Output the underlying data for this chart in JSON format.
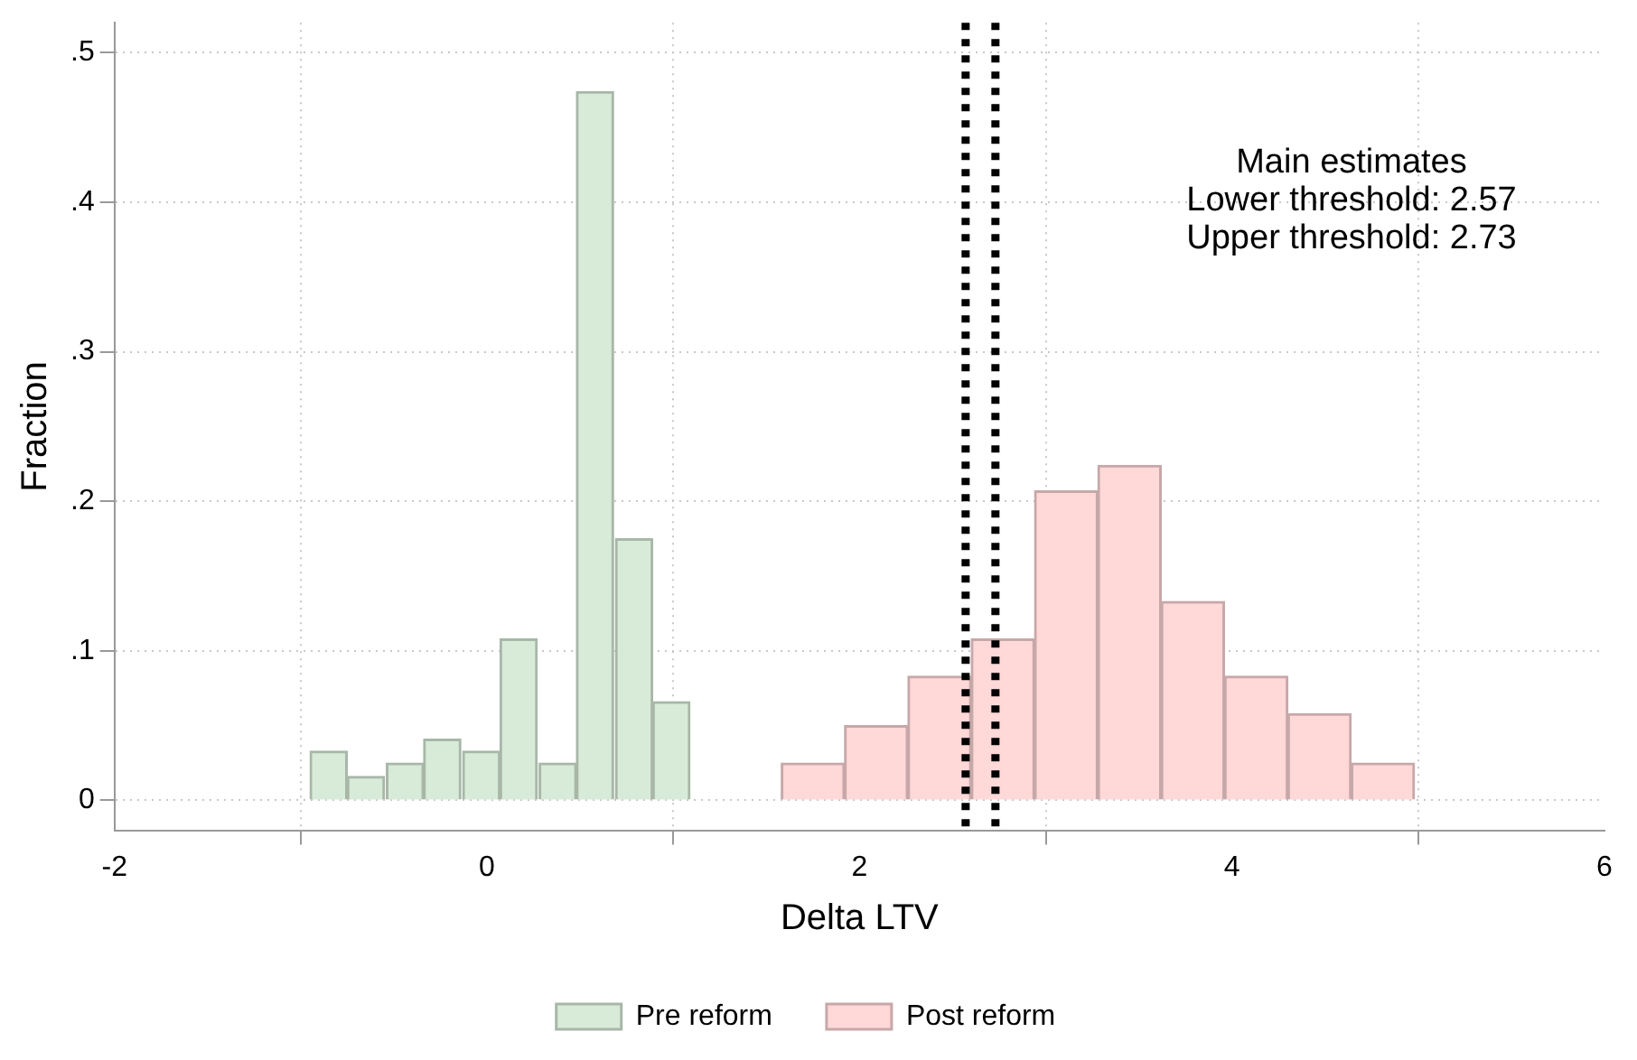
{
  "chart_data": {
    "type": "bar",
    "xlabel": "Delta LTV",
    "ylabel": "Fraction",
    "annotations": [
      "Main estimates",
      "Lower threshold: 2.57",
      "Upper threshold: 2.73"
    ],
    "series": [
      {
        "name": "Pre reform",
        "color": "#d8ebd8",
        "x": [
          -0.85,
          -0.65,
          -0.44,
          -0.24,
          -0.03,
          0.17,
          0.38,
          0.58,
          0.79,
          0.99
        ],
        "values": [
          0.033,
          0.016,
          0.025,
          0.041,
          0.033,
          0.108,
          0.025,
          0.474,
          0.175,
          0.066
        ]
      },
      {
        "name": "Post reform",
        "color": "#ffd8d8",
        "x": [
          1.75,
          2.09,
          2.43,
          2.77,
          3.11,
          3.45,
          3.79,
          4.13,
          4.47,
          4.81
        ],
        "values": [
          0.025,
          0.05,
          0.083,
          0.108,
          0.207,
          0.224,
          0.133,
          0.083,
          0.058,
          0.025
        ]
      }
    ],
    "xlim": [
      -2,
      6
    ],
    "xticks": [
      -2,
      0,
      2,
      4,
      6
    ],
    "ylim": [
      -0.02,
      0.52
    ],
    "yticks": [
      {
        "value": 0,
        "label": "0"
      },
      {
        "value": 0.1,
        "label": ".1"
      },
      {
        "value": 0.2,
        "label": ".2"
      },
      {
        "value": 0.3,
        "label": ".3"
      },
      {
        "value": 0.4,
        "label": ".4"
      },
      {
        "value": 0.5,
        "label": ".5"
      }
    ],
    "ref_lines": [
      {
        "axis": "x",
        "value": 2.57,
        "color": "#000000",
        "line_style": "dotted"
      },
      {
        "axis": "x",
        "value": 2.73,
        "color": "#000000",
        "line_style": "dotted"
      }
    ],
    "grid": true,
    "legend": "bottom"
  }
}
